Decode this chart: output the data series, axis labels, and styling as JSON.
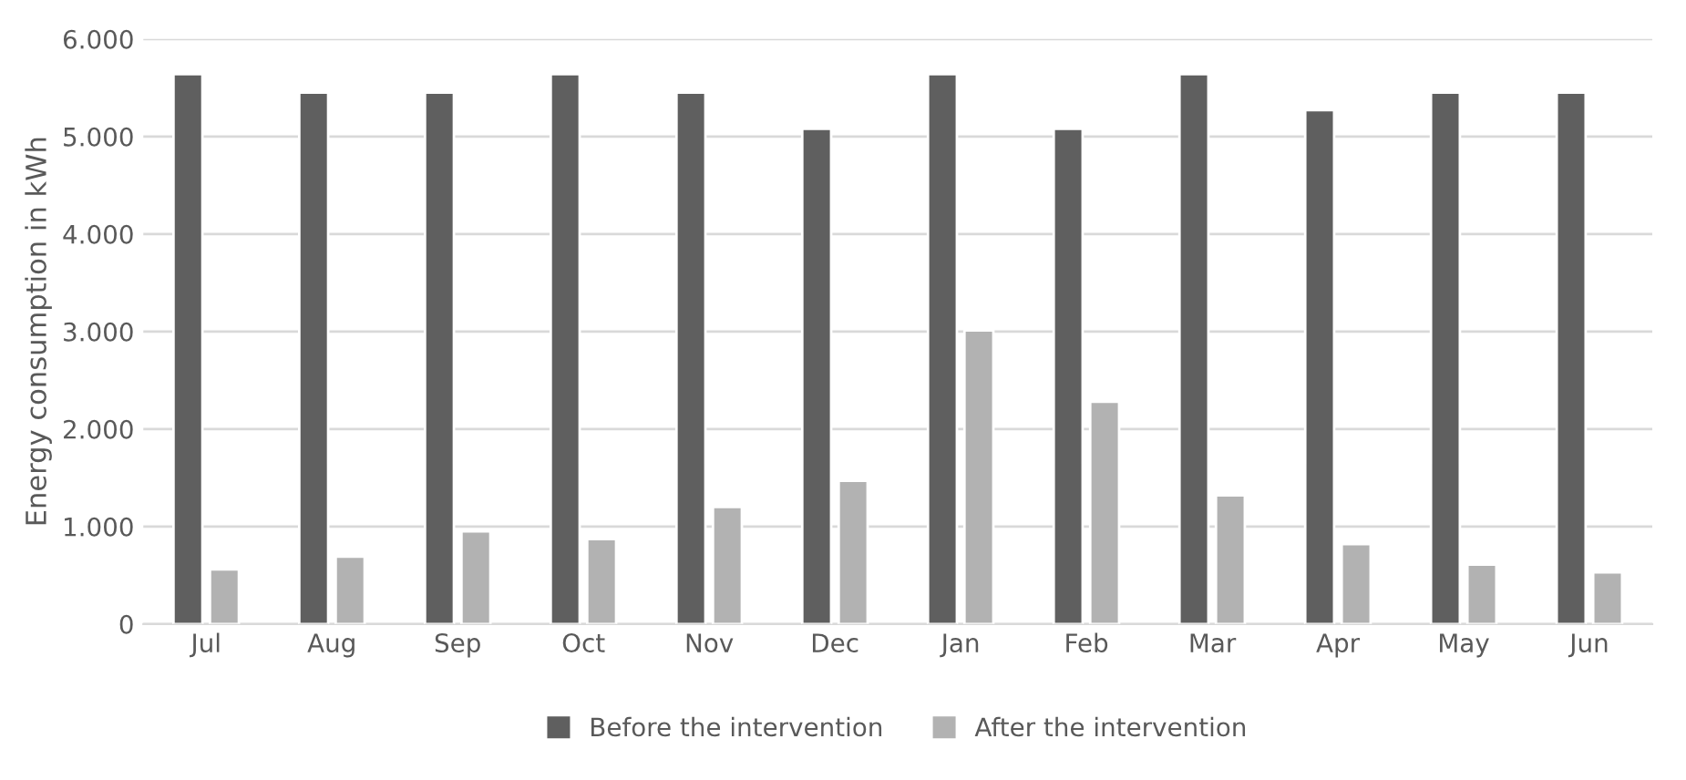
{
  "chart_data": {
    "type": "bar",
    "ylabel": "Energy consumption in kWh",
    "categories": [
      "Jul",
      "Aug",
      "Sep",
      "Oct",
      "Nov",
      "Dec",
      "Jan",
      "Feb",
      "Mar",
      "Apr",
      "May",
      "Jun"
    ],
    "series": [
      {
        "name": "Before the intervention",
        "color": "#5f5f5f",
        "values": [
          5640,
          5450,
          5450,
          5640,
          5450,
          5080,
          5640,
          5080,
          5640,
          5270,
          5450,
          5450
        ]
      },
      {
        "name": "After the intervention",
        "color": "#b2b2b2",
        "values": [
          560,
          690,
          950,
          870,
          1200,
          1470,
          3010,
          2280,
          1320,
          820,
          610,
          530
        ]
      }
    ],
    "ylim": [
      0,
      6000
    ],
    "yticks": [
      {
        "value": 0,
        "label": "0"
      },
      {
        "value": 1000,
        "label": "1.000"
      },
      {
        "value": 2000,
        "label": "2.000"
      },
      {
        "value": 3000,
        "label": "3.000"
      },
      {
        "value": 4000,
        "label": "4.000"
      },
      {
        "value": 5000,
        "label": "5.000"
      },
      {
        "value": 6000,
        "label": "6.000"
      }
    ],
    "grid": "y",
    "legend": "bottom"
  }
}
